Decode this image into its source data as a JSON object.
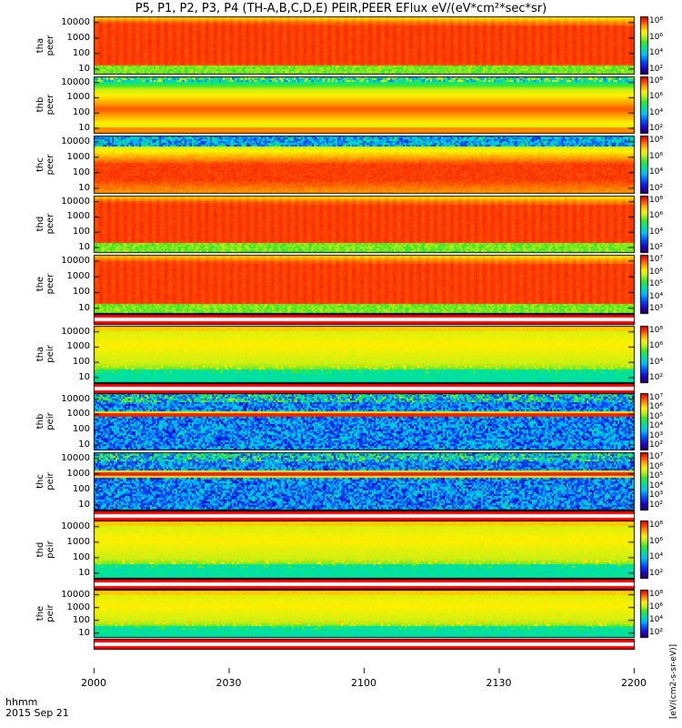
{
  "chart_data": {
    "type": "heatmap",
    "title": "P5, P1, P2, P3, P4 (TH-A,B,C,D,E) PEIR,PEER EFlux eV/(eV*cm²*sec*sr)",
    "x_tick_labels": [
      "2000",
      "2030",
      "2100",
      "2130",
      "2200"
    ],
    "x_range_minutes": [
      0,
      120
    ],
    "footer": {
      "label": "hhmm",
      "date": "2015 Sep 21"
    },
    "colorbar_unit": "[eV/(cm2-s-sr-eV)]",
    "y_range_eV": [
      5,
      25000
    ],
    "y_tick_labels": [
      "10",
      "100",
      "1000",
      "10000"
    ],
    "panels": [
      {
        "probe": "tha",
        "species": "peer",
        "cb_ticks": [
          "10⁸",
          "10⁶",
          "10⁴",
          "10²"
        ],
        "profile": "electron_hot"
      },
      {
        "probe": "thb",
        "species": "peer",
        "cb_ticks": [
          "10⁸",
          "10⁶",
          "10⁴",
          "10²"
        ],
        "profile": "electron_mid"
      },
      {
        "probe": "thc",
        "species": "peer",
        "cb_ticks": [
          "10⁸",
          "10⁶",
          "10⁴",
          "10²"
        ],
        "profile": "electron_warm"
      },
      {
        "probe": "thd",
        "species": "peer",
        "cb_ticks": [
          "10⁸",
          "10⁶",
          "10⁴",
          "10²"
        ],
        "profile": "electron_hot"
      },
      {
        "probe": "the",
        "species": "peer",
        "cb_ticks": [
          "10⁷",
          "10⁶",
          "10⁵",
          "10⁴",
          "10³"
        ],
        "profile": "electron_hot"
      },
      {
        "probe": "tha",
        "species": "peir",
        "cb_ticks": [
          "10⁸",
          "10⁶",
          "10⁴",
          "10²"
        ],
        "profile": "ion"
      },
      {
        "probe": "thb",
        "species": "peir",
        "cb_ticks": [
          "10⁷",
          "10⁶",
          "10⁵",
          "10⁴",
          "10³",
          "10²"
        ],
        "profile": "ion_noisy"
      },
      {
        "probe": "thc",
        "species": "peir",
        "cb_ticks": [
          "10⁷",
          "10⁶",
          "10⁵",
          "10⁴",
          "10³",
          "10²"
        ],
        "profile": "ion_noisy"
      },
      {
        "probe": "thd",
        "species": "peir",
        "cb_ticks": [
          "10⁸",
          "10⁶",
          "10⁴",
          "10²"
        ],
        "profile": "ion"
      },
      {
        "probe": "the",
        "species": "peir",
        "cb_ticks": [
          "10⁸",
          "10⁶",
          "10⁴",
          "10²"
        ],
        "profile": "ion"
      }
    ]
  }
}
